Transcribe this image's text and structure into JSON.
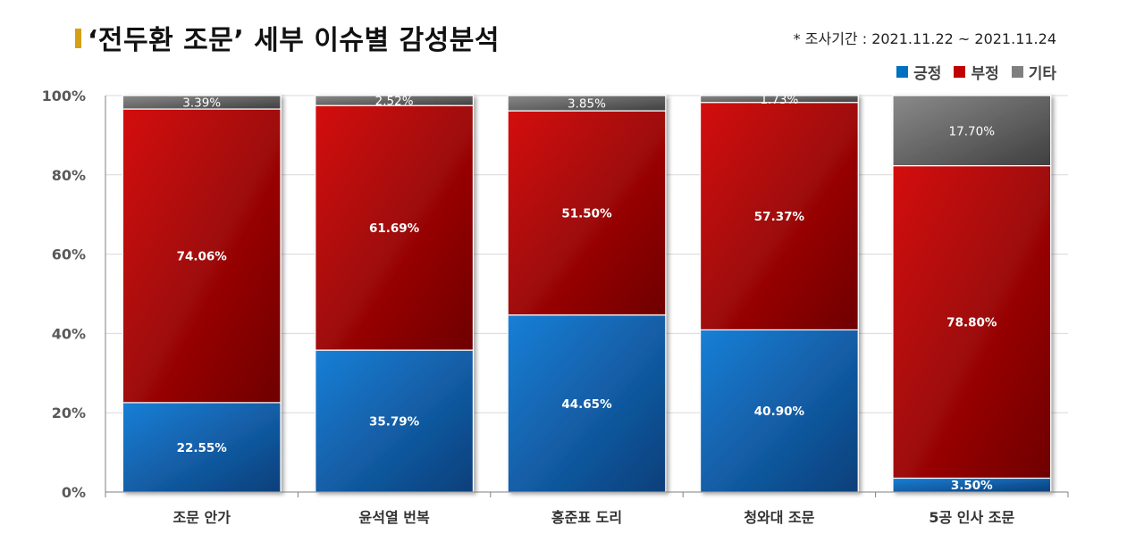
{
  "title": "‘전두환 조문’ 세부 이슈별 감성분석",
  "period": "* 조사기간 : 2021.11.22 ~ 2021.11.24",
  "colors": {
    "positive": "#0070c0",
    "negative": "#c00000",
    "other": "#7f7f7f",
    "accent": "#d4a017"
  },
  "chart_data": {
    "type": "bar",
    "stacked": true,
    "categories": [
      "조문 안가",
      "윤석열 번복",
      "홍준표 도리",
      "청와대 조문",
      "5공 인사 조문"
    ],
    "series": [
      {
        "name": "긍정",
        "values": [
          22.55,
          35.79,
          44.65,
          40.9,
          3.5
        ],
        "labels": [
          "22.55%",
          "35.79%",
          "44.65%",
          "40.90%",
          "3.50%"
        ]
      },
      {
        "name": "부정",
        "values": [
          74.06,
          61.69,
          51.5,
          57.37,
          78.8
        ],
        "labels": [
          "74.06%",
          "61.69%",
          "51.50%",
          "57.37%",
          "78.80%"
        ]
      },
      {
        "name": "기타",
        "values": [
          3.39,
          2.52,
          3.85,
          1.73,
          17.7
        ],
        "labels": [
          "3.39%",
          "2.52%",
          "3.85%",
          "1.73%",
          "17.70%"
        ]
      }
    ],
    "yticks": [
      "0%",
      "20%",
      "40%",
      "60%",
      "80%",
      "100%"
    ],
    "ylim": [
      0,
      100
    ],
    "grid": true,
    "legend_position": "top-right"
  }
}
